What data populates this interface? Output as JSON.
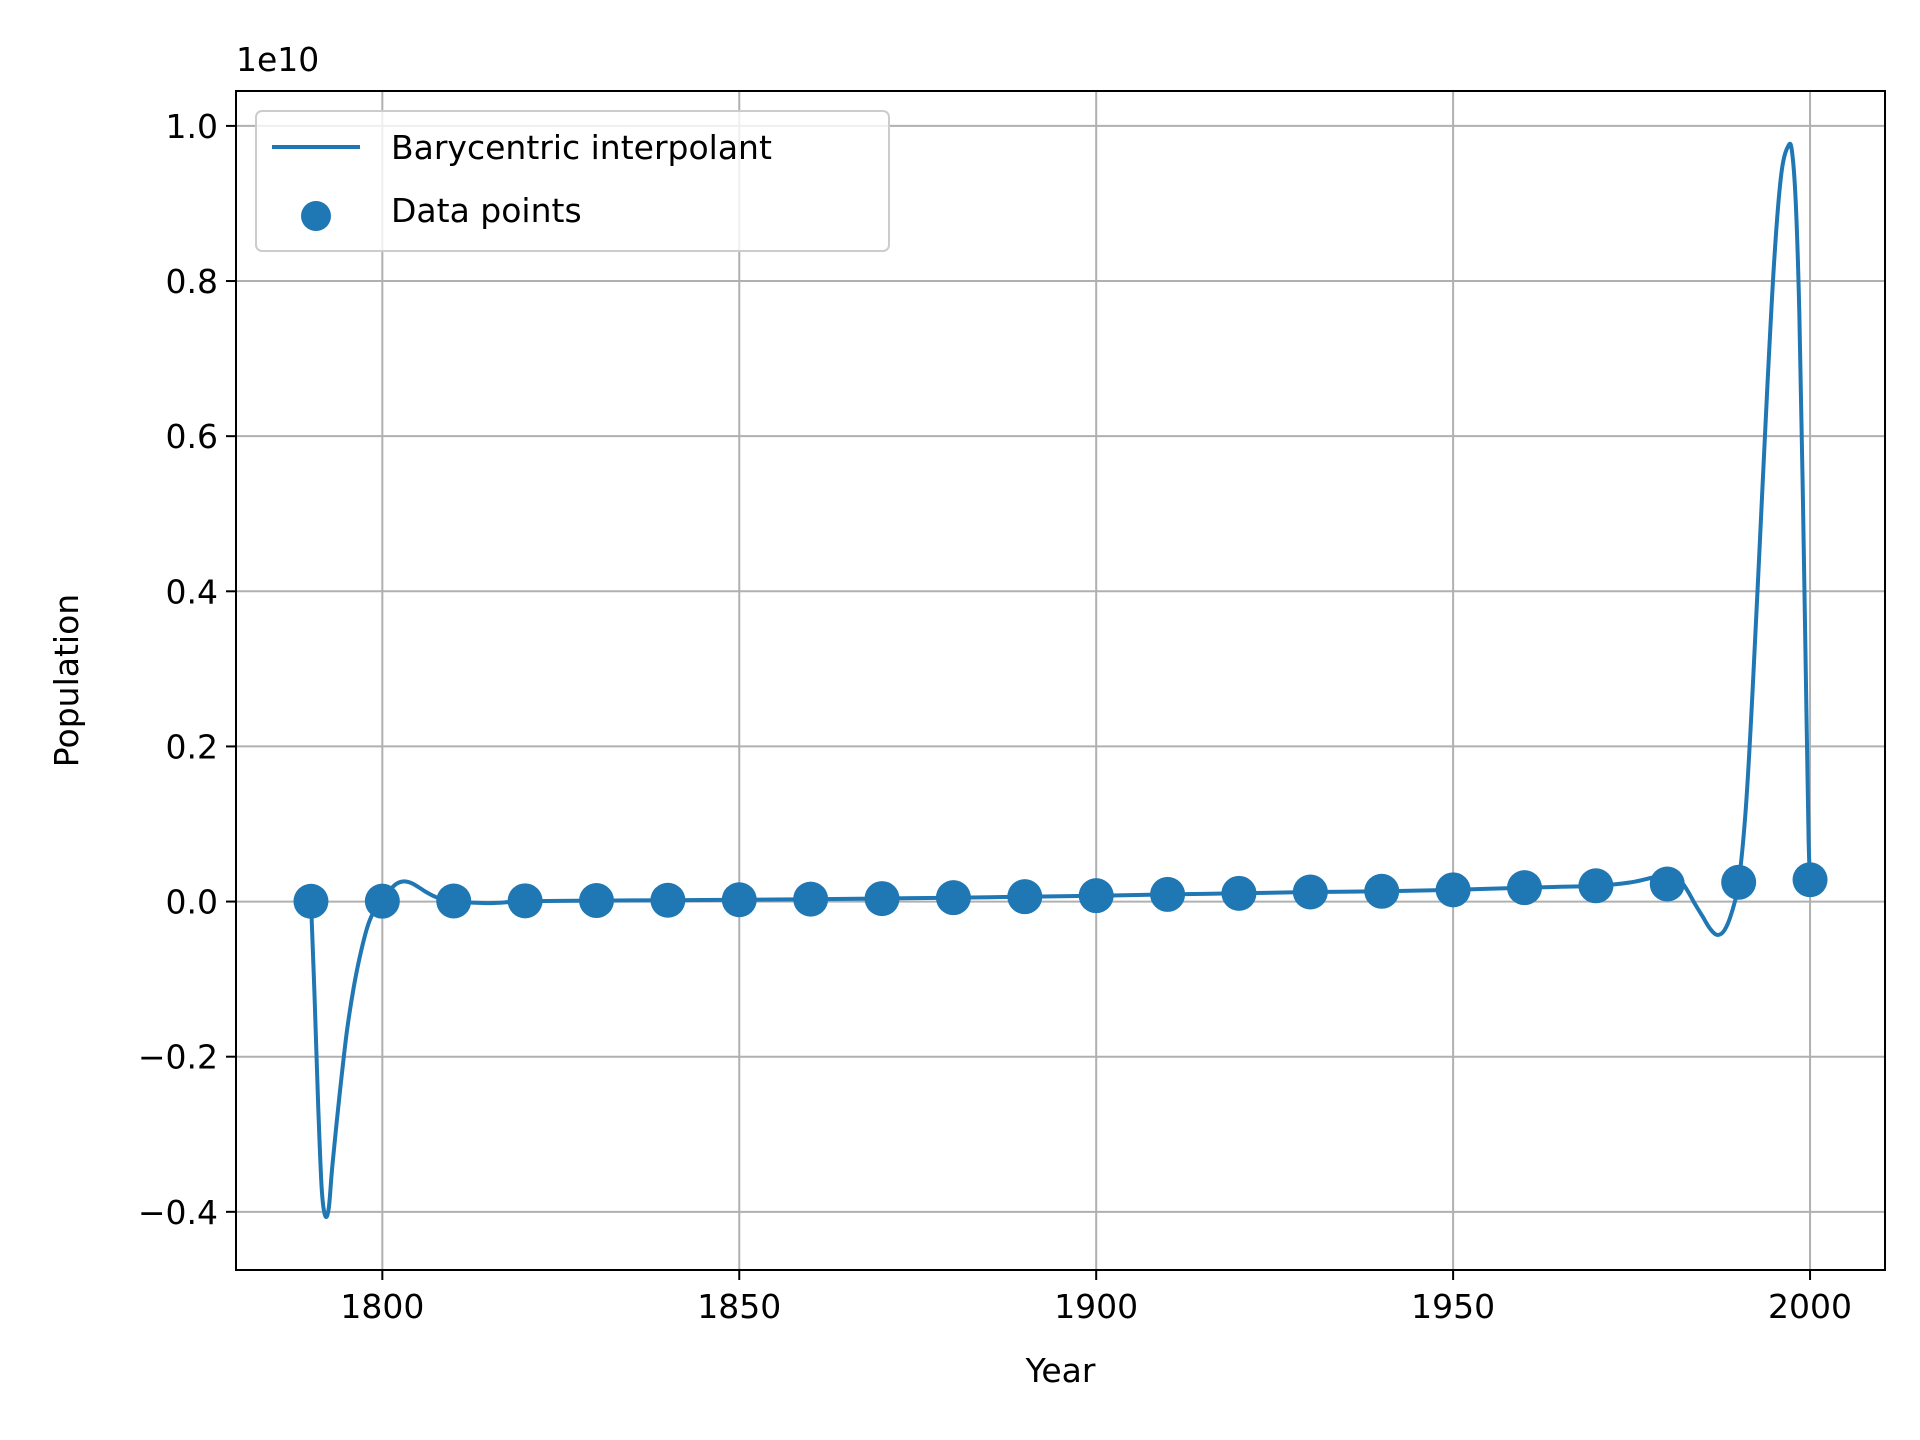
{
  "chart_data": {
    "type": "line",
    "xlabel": "Year",
    "ylabel": "Population",
    "offset_label": "1e10",
    "xlim": [
      1779.5,
      2010.5
    ],
    "ylim": [
      -0.475,
      1.045
    ],
    "y_units": "1e10",
    "grid": true,
    "legend_position": "upper-left",
    "x_ticks": [
      1800,
      1850,
      1900,
      1950,
      2000
    ],
    "x_tick_labels": [
      "1800",
      "1850",
      "1900",
      "1950",
      "2000"
    ],
    "y_ticks": [
      -0.4,
      -0.2,
      0.0,
      0.2,
      0.4,
      0.6,
      0.8,
      1.0
    ],
    "y_tick_labels": [
      "−0.4",
      "−0.2",
      "0.0",
      "0.2",
      "0.4",
      "0.6",
      "0.8",
      "1.0"
    ],
    "color": "#1f77b4",
    "series": [
      {
        "name": "Barycentric interpolant",
        "kind": "line",
        "x": [
          1790,
          1790.5,
          1791,
          1791.5,
          1792,
          1792.5,
          1793,
          1794,
          1795,
          1796,
          1797,
          1798,
          1799,
          1800,
          1801,
          1802,
          1803,
          1804,
          1805,
          1806,
          1807,
          1808,
          1809,
          1810,
          1815,
          1820,
          1830,
          1840,
          1850,
          1860,
          1870,
          1880,
          1890,
          1900,
          1910,
          1920,
          1930,
          1940,
          1950,
          1960,
          1970,
          1975,
          1978,
          1980,
          1982,
          1984,
          1985,
          1986,
          1987,
          1988,
          1989,
          1990,
          1991,
          1992,
          1993,
          1994,
          1995,
          1996,
          1997,
          1997.5,
          1998,
          1998.5,
          1999,
          1999.5,
          1999.8,
          2000
        ],
        "y": [
          0.0,
          -0.12,
          -0.26,
          -0.37,
          -0.405,
          -0.395,
          -0.34,
          -0.25,
          -0.17,
          -0.11,
          -0.065,
          -0.03,
          -0.01,
          0.0,
          0.014,
          0.023,
          0.026,
          0.024,
          0.019,
          0.013,
          0.008,
          0.004,
          0.001,
          0.0,
          -0.002,
          0.0004,
          0.0013,
          0.0017,
          0.0023,
          0.0031,
          0.0039,
          0.005,
          0.0063,
          0.0076,
          0.0092,
          0.0106,
          0.0123,
          0.0132,
          0.0151,
          0.0179,
          0.0203,
          0.025,
          0.031,
          0.033,
          0.025,
          -0.005,
          -0.02,
          -0.035,
          -0.043,
          -0.037,
          -0.015,
          0.0249,
          0.12,
          0.28,
          0.47,
          0.66,
          0.83,
          0.94,
          0.975,
          0.965,
          0.9,
          0.76,
          0.52,
          0.24,
          0.08,
          0.0281
        ]
      },
      {
        "name": "Data points",
        "kind": "scatter",
        "x": [
          1790,
          1800,
          1810,
          1820,
          1830,
          1840,
          1850,
          1860,
          1870,
          1880,
          1890,
          1900,
          1910,
          1920,
          1930,
          1940,
          1950,
          1960,
          1970,
          1980,
          1990,
          2000
        ],
        "y": [
          0.00039,
          0.00053,
          0.00072,
          0.00096,
          0.00129,
          0.00171,
          0.00232,
          0.00314,
          0.00386,
          0.00502,
          0.0063,
          0.00762,
          0.00922,
          0.0106,
          0.01232,
          0.01322,
          0.01513,
          0.01793,
          0.02032,
          0.02265,
          0.02487,
          0.02814
        ]
      }
    ]
  }
}
